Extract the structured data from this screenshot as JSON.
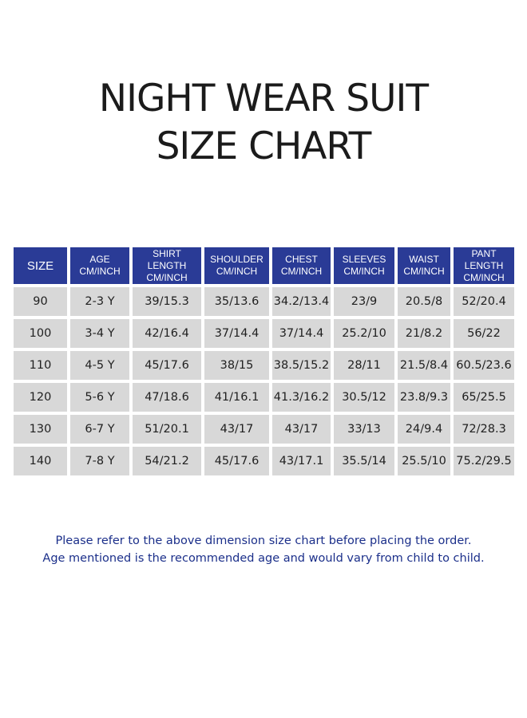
{
  "title": {
    "line1": "NIGHT WEAR SUIT",
    "line2": "SIZE CHART"
  },
  "table": {
    "headers": [
      [
        "SIZE"
      ],
      [
        "AGE",
        "CM/INCH"
      ],
      [
        "SHIRT LENGTH",
        "CM/INCH"
      ],
      [
        "SHOULDER",
        "CM/INCH"
      ],
      [
        "CHEST",
        "CM/INCH"
      ],
      [
        "SLEEVES",
        "CM/INCH"
      ],
      [
        "WAIST",
        "CM/INCH"
      ],
      [
        "PANT LENGTH",
        "CM/INCH"
      ]
    ],
    "rows": [
      [
        "90",
        "2-3 Y",
        "39/15.3",
        "35/13.6",
        "34.2/13.4",
        "23/9",
        "20.5/8",
        "52/20.4"
      ],
      [
        "100",
        "3-4 Y",
        "42/16.4",
        "37/14.4",
        "37/14.4",
        "25.2/10",
        "21/8.2",
        "56/22"
      ],
      [
        "110",
        "4-5 Y",
        "45/17.6",
        "38/15",
        "38.5/15.2",
        "28/11",
        "21.5/8.4",
        "60.5/23.6"
      ],
      [
        "120",
        "5-6 Y",
        "47/18.6",
        "41/16.1",
        "41.3/16.2",
        "30.5/12",
        "23.8/9.3",
        "65/25.5"
      ],
      [
        "130",
        "6-7 Y",
        "51/20.1",
        "43/17",
        "43/17",
        "33/13",
        "24/9.4",
        "72/28.3"
      ],
      [
        "140",
        "7-8 Y",
        "54/21.2",
        "45/17.6",
        "43/17.1",
        "35.5/14",
        "25.5/10",
        "75.2/29.5"
      ]
    ]
  },
  "footer": {
    "line1": "Please refer to the above dimension size chart before placing the order.",
    "line2": "Age mentioned is the recommended age and would vary from child to child."
  },
  "colors": {
    "header_bg": "#2a3b96",
    "cell_bg": "#d8d8d8",
    "footer_text": "#1b2f8a"
  }
}
